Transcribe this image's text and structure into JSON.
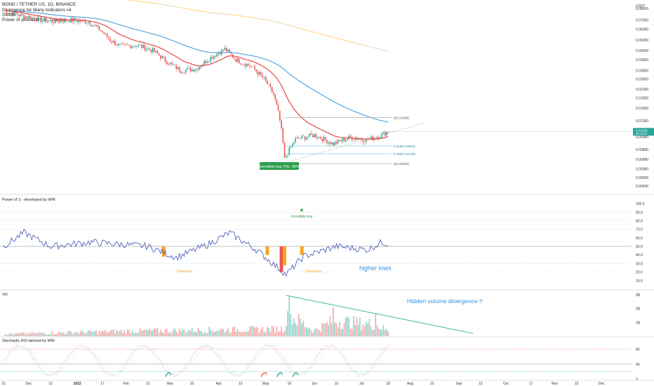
{
  "header": {
    "symbol": "BOND / TETHER US, 1D, BINANCE",
    "indicators": [
      "Divergence for Many Indicators v4",
      "SMMA",
      "Power of probability 3 - Overlay"
    ]
  },
  "colors": {
    "bull": "#26a69a",
    "bear": "#ef5350",
    "smma_red": "#e53935",
    "sma_blue": "#4a9fd8",
    "orange_dotted": "#f5a623",
    "teal_line": "#4cc3a6",
    "purple": "#7e57c2",
    "blue_rsi": "#3f51b5"
  },
  "price_axis": {
    "unit": "USDT",
    "ticks": [
      "0.08500",
      "0.07000",
      "0.06000",
      "0.05000",
      "0.04200",
      "0.03600",
      "0.03000",
      "0.02600",
      "0.02200",
      "0.01900",
      "0.01600",
      "0.01300",
      "0.00990",
      "0.00800",
      "0.00680",
      "0.00580",
      "0.00500",
      "0.00435"
    ],
    "last_price": "0.01083",
    "countdown": "00:10:37"
  },
  "fib": {
    "levels": [
      {
        "label": "0(0.01368)",
        "value": 0.01368
      },
      {
        "label": "0.618(0.00849)",
        "value": 0.00849
      },
      {
        "label": "0.786(0.00746)",
        "value": 0.00746
      },
      {
        "label": "1(0.00632)",
        "value": 0.00632
      }
    ]
  },
  "annotations": {
    "incredible_buy_tag": "Incredible buy. Prb.: 85%",
    "star_label": "Incredible buy",
    "great_buy_1": "Great buy",
    "great_buy_2": "Great buy",
    "higher_lows": "higher lows",
    "hidden_volume": "Hidden volume divergence !!"
  },
  "panes": {
    "power3": {
      "title": "Power of 3 - developed by WW",
      "ticks": [
        "100.0",
        "90.0",
        "80.0",
        "70.0",
        "60.0",
        "50.0",
        "40.0",
        "30.0",
        "20.0",
        "10.0"
      ]
    },
    "volume": {
      "title": "Vol",
      "ticks": [
        "3B",
        "2B",
        "1B"
      ]
    },
    "stoch": {
      "title": "Stochastic RSI tailored by WW",
      "ticks": [
        "80",
        "40",
        "0"
      ]
    }
  },
  "time_axis": {
    "labels": [
      "15",
      "Dec",
      "15",
      "2022",
      "17",
      "Feb",
      "15",
      "Mar",
      "15",
      "Apr",
      "15",
      "May",
      "16",
      "Jun",
      "15",
      "Jul",
      "18",
      "Aug",
      "15",
      "Sep",
      "15",
      "Oct",
      "17",
      "Nov",
      "15",
      "Dec"
    ]
  },
  "chart_data": {
    "type": "candlestick",
    "x_start": "2021-11-15",
    "x_end": "2022-12-20",
    "y_scale": "log",
    "price_range": [
      0.0042,
      0.09
    ],
    "price_close_keypoints": [
      [
        "2021-11-15",
        0.082
      ],
      [
        "2021-11-25",
        0.076
      ],
      [
        "2021-12-05",
        0.072
      ],
      [
        "2021-12-15",
        0.068
      ],
      [
        "2021-12-28",
        0.07
      ],
      [
        "2022-01-08",
        0.068
      ],
      [
        "2022-01-15",
        0.06
      ],
      [
        "2022-01-22",
        0.05
      ],
      [
        "2022-01-28",
        0.045
      ],
      [
        "2022-02-08",
        0.046
      ],
      [
        "2022-02-18",
        0.042
      ],
      [
        "2022-02-28",
        0.034
      ],
      [
        "2022-03-08",
        0.03
      ],
      [
        "2022-03-18",
        0.031
      ],
      [
        "2022-03-28",
        0.038
      ],
      [
        "2022-04-05",
        0.043
      ],
      [
        "2022-04-12",
        0.036
      ],
      [
        "2022-04-22",
        0.032
      ],
      [
        "2022-04-30",
        0.026
      ],
      [
        "2022-05-06",
        0.02
      ],
      [
        "2022-05-10",
        0.013
      ],
      [
        "2022-05-13",
        0.0068
      ],
      [
        "2022-05-20",
        0.0095
      ],
      [
        "2022-06-01",
        0.0102
      ],
      [
        "2022-06-13",
        0.0088
      ],
      [
        "2022-06-24",
        0.0098
      ],
      [
        "2022-07-04",
        0.0094
      ],
      [
        "2022-07-12",
        0.01
      ],
      [
        "2022-07-18",
        0.01083
      ]
    ],
    "volume_keypoints": [
      [
        "2021-11-15",
        0.3
      ],
      [
        "2022-02-01",
        0.7
      ],
      [
        "2022-05-12",
        1.0
      ],
      [
        "2022-05-16",
        2.9
      ],
      [
        "2022-06-01",
        0.8
      ],
      [
        "2022-06-13",
        2.1
      ],
      [
        "2022-07-10",
        1.6
      ],
      [
        "2022-07-18",
        0.7
      ]
    ],
    "power3_keypoints": [
      [
        "2021-11-15",
        50
      ],
      [
        "2021-11-28",
        66
      ],
      [
        "2021-12-15",
        50
      ],
      [
        "2022-01-10",
        55
      ],
      [
        "2022-02-15",
        50
      ],
      [
        "2022-03-05",
        37
      ],
      [
        "2022-03-25",
        52
      ],
      [
        "2022-04-08",
        66
      ],
      [
        "2022-04-25",
        46
      ],
      [
        "2022-05-14",
        17
      ],
      [
        "2022-05-25",
        38
      ],
      [
        "2022-06-15",
        50
      ],
      [
        "2022-07-05",
        46
      ],
      [
        "2022-07-14",
        55
      ],
      [
        "2022-07-18",
        53
      ]
    ],
    "ylabel": "USDT"
  }
}
